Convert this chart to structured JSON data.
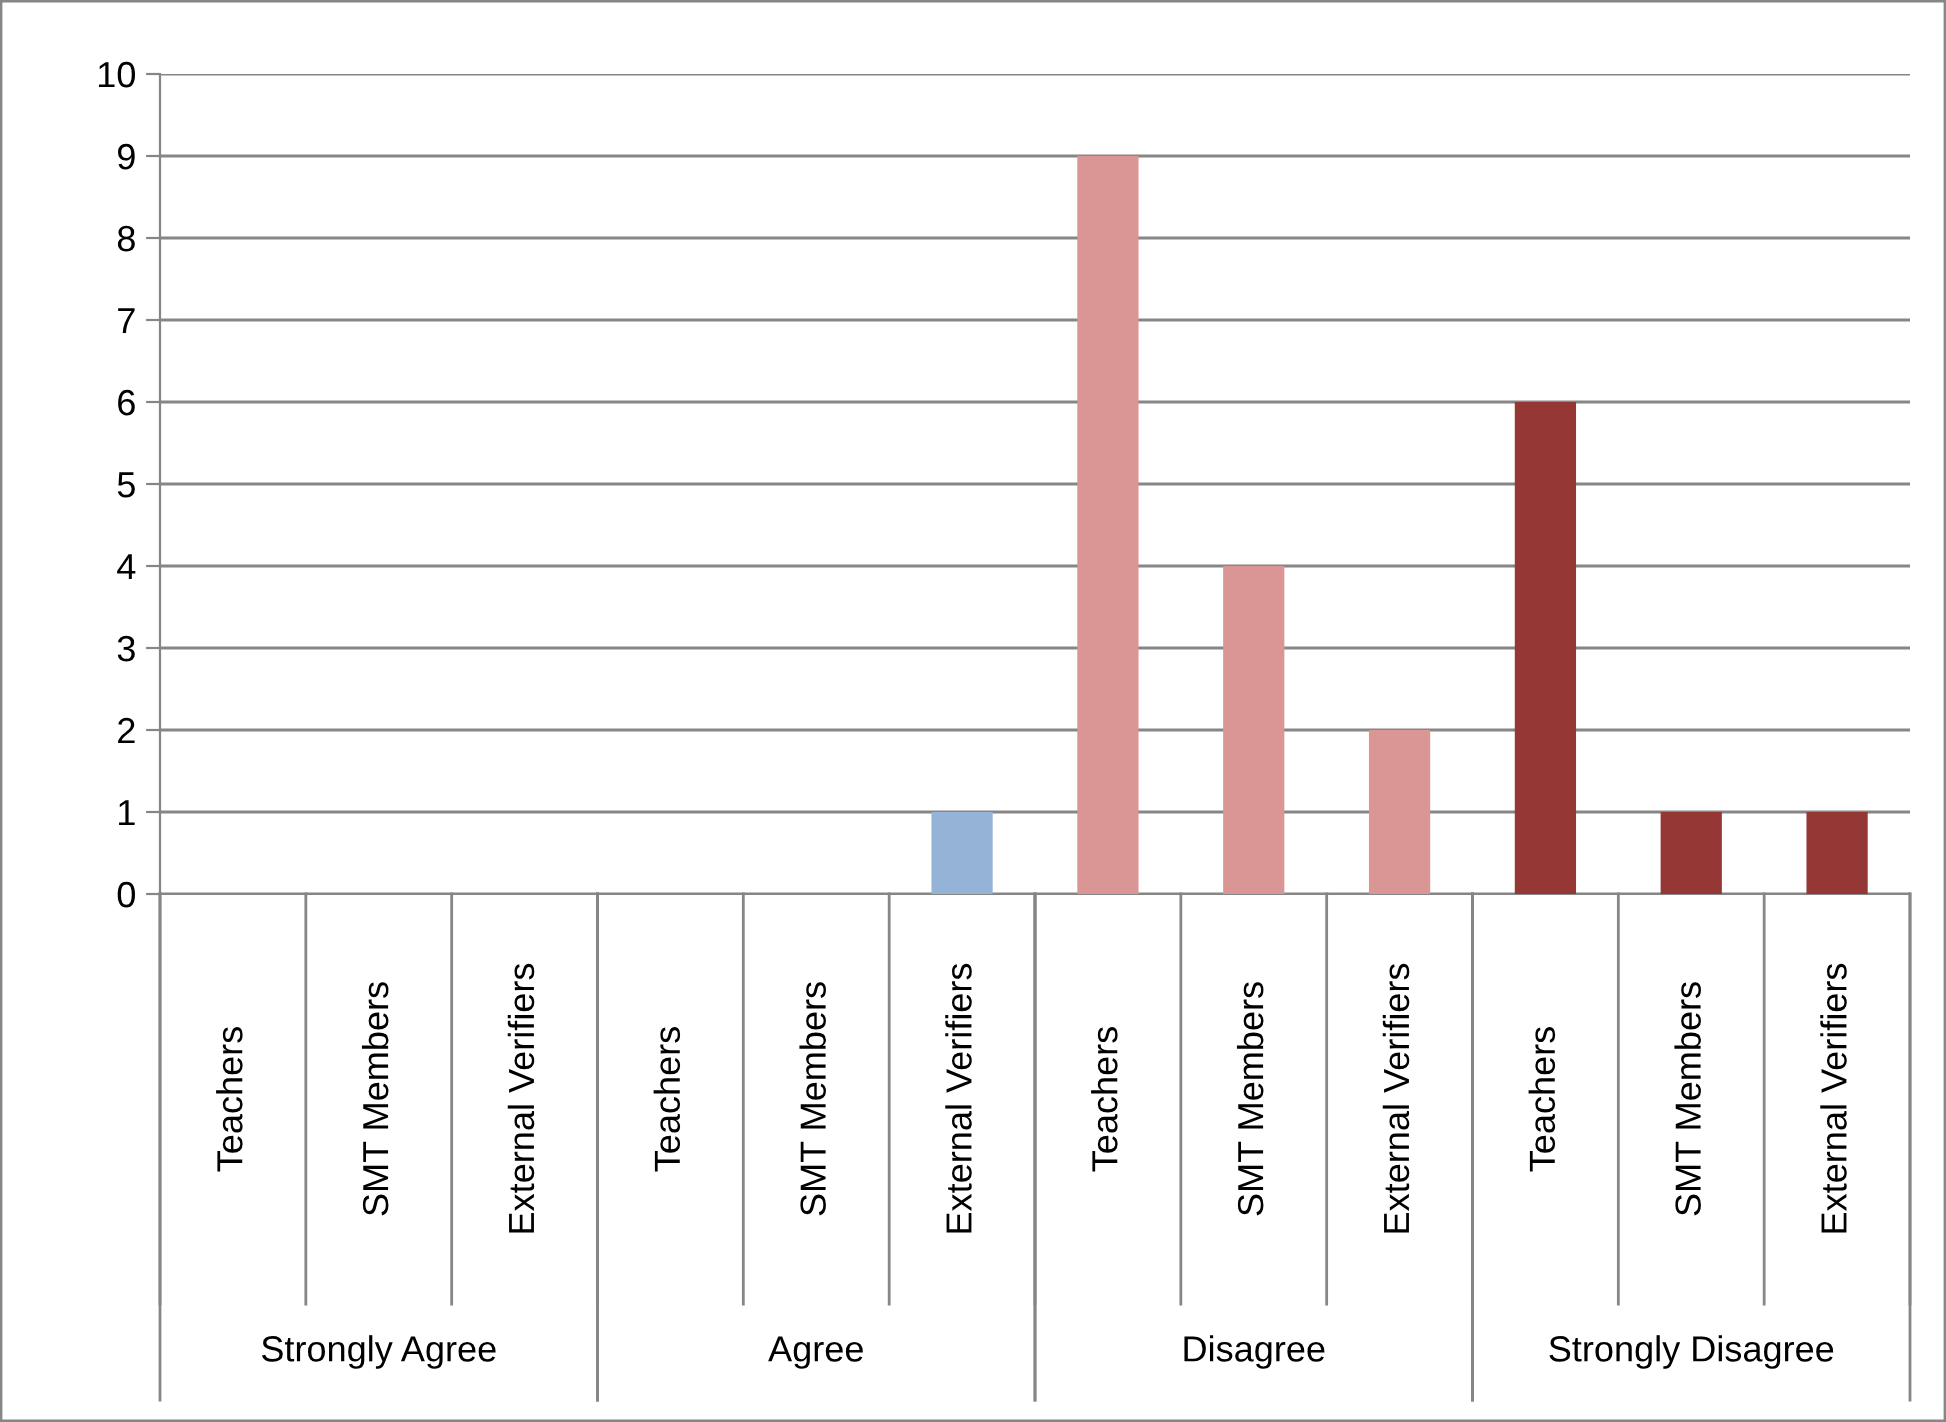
{
  "chart_data": {
    "type": "bar",
    "categories": [
      "Teachers",
      "SMT Members",
      "External Verifiers",
      "Teachers",
      "SMT Members",
      "External Verifiers",
      "Teachers",
      "SMT Members",
      "External Verifiers",
      "Teachers",
      "SMT Members",
      "External Verifiers"
    ],
    "values": [
      0,
      0,
      0,
      0,
      0,
      1,
      9,
      4,
      2,
      6,
      1,
      1
    ],
    "colors": [
      "#95b3d7",
      "#95b3d7",
      "#95b3d7",
      "#95b3d7",
      "#95b3d7",
      "#95b3d7",
      "#d99694",
      "#d99694",
      "#d99694",
      "#953735",
      "#953735",
      "#953735"
    ],
    "annotations": [
      "Strongly Agree",
      "Agree",
      "Disagree",
      "Strongly Disagree"
    ],
    "ylim": [
      0,
      10
    ],
    "yticks": [
      0,
      1,
      2,
      3,
      4,
      5,
      6,
      7,
      8,
      9,
      10
    ],
    "grid": "y"
  }
}
